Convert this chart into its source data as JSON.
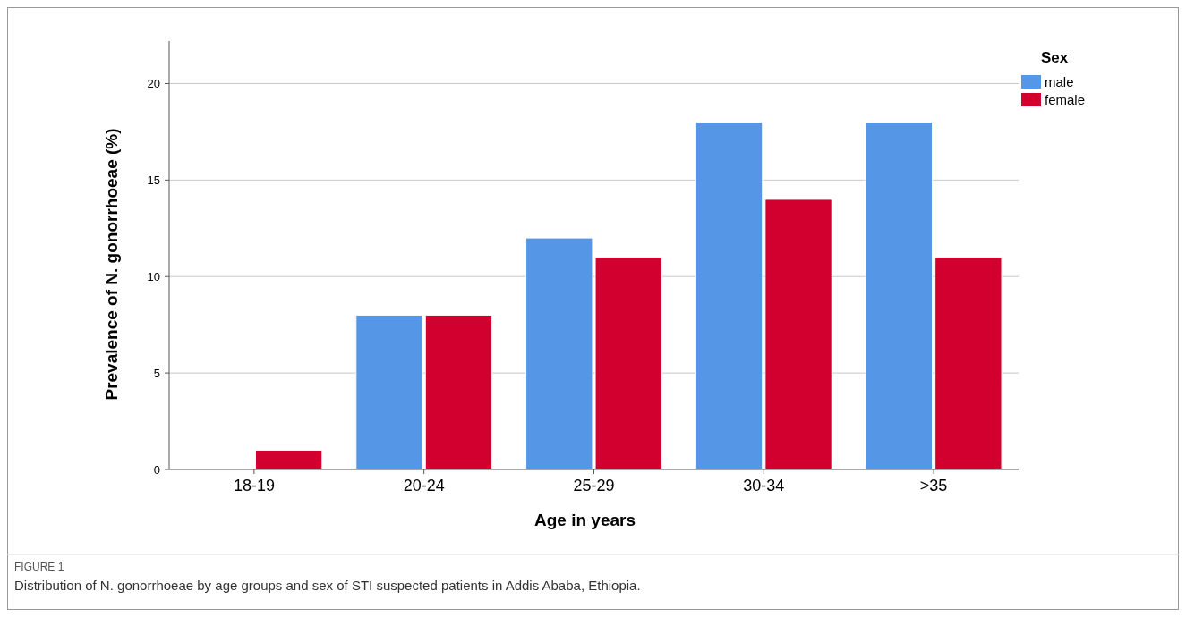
{
  "chart_data": {
    "type": "bar",
    "xlabel": "Age in years",
    "ylabel": "Prevalence of N. gonorrhoeae (%)",
    "legend_title": "Sex",
    "categories": [
      "18-19",
      "20-24",
      "25-29",
      "30-34",
      ">35"
    ],
    "series": [
      {
        "name": "male",
        "color": "#5596e6",
        "values": [
          0,
          8,
          12,
          18,
          18
        ]
      },
      {
        "name": "female",
        "color": "#d1002e",
        "values": [
          1,
          8,
          11,
          14,
          11
        ]
      }
    ],
    "ylim": [
      0,
      22.2
    ],
    "yticks": [
      0,
      5,
      10,
      15,
      20
    ],
    "grid": "y",
    "legend": "top right",
    "annotations": [
      "FIGURE 1",
      "Distribution of N. gonorrhoeae by age groups and sex of STI suspected patients in Addis Ababa, Ethiopia."
    ]
  }
}
